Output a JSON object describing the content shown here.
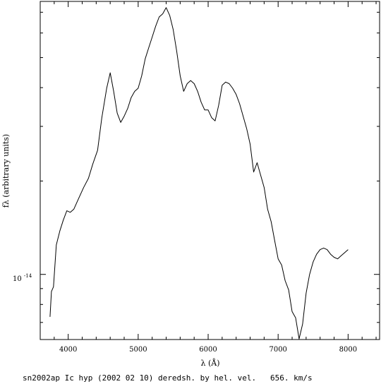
{
  "chart_data": {
    "type": "line",
    "title": "",
    "caption": "sn2002ap Ic hyp (2002 02 10) deredsh. by hel. vel.   656. km/s",
    "xlabel": "λ (Å)",
    "ylabel": "fλ (arbitrary units)",
    "y_scale": "log",
    "xlim": [
      3600,
      8450
    ],
    "ylim_log10": [
      -14.21,
      -13.12
    ],
    "x_ticks": [
      {
        "value": 4000,
        "label": "4000"
      },
      {
        "value": 5000,
        "label": "5000"
      },
      {
        "value": 6000,
        "label": "6000"
      },
      {
        "value": 7000,
        "label": "7000"
      },
      {
        "value": 8000,
        "label": "8000"
      }
    ],
    "y_tick_label": "10",
    "y_tick_exponent": "-14",
    "y_tick_value_log10": -14,
    "grid": false,
    "series": [
      {
        "color": "#000000",
        "log10_flux": [
          [
            3740,
            -14.137
          ],
          [
            3760,
            -14.055
          ],
          [
            3790,
            -14.04
          ],
          [
            3830,
            -13.905
          ],
          [
            3880,
            -13.86
          ],
          [
            3930,
            -13.825
          ],
          [
            3980,
            -13.795
          ],
          [
            4030,
            -13.8
          ],
          [
            4080,
            -13.79
          ],
          [
            4150,
            -13.755
          ],
          [
            4220,
            -13.72
          ],
          [
            4290,
            -13.69
          ],
          [
            4350,
            -13.645
          ],
          [
            4420,
            -13.6
          ],
          [
            4480,
            -13.495
          ],
          [
            4550,
            -13.4
          ],
          [
            4600,
            -13.35
          ],
          [
            4650,
            -13.41
          ],
          [
            4700,
            -13.48
          ],
          [
            4750,
            -13.51
          ],
          [
            4800,
            -13.49
          ],
          [
            4850,
            -13.465
          ],
          [
            4900,
            -13.43
          ],
          [
            4950,
            -13.41
          ],
          [
            5000,
            -13.4
          ],
          [
            5050,
            -13.36
          ],
          [
            5100,
            -13.305
          ],
          [
            5150,
            -13.27
          ],
          [
            5200,
            -13.235
          ],
          [
            5250,
            -13.2
          ],
          [
            5300,
            -13.17
          ],
          [
            5350,
            -13.16
          ],
          [
            5400,
            -13.14
          ],
          [
            5450,
            -13.165
          ],
          [
            5500,
            -13.21
          ],
          [
            5550,
            -13.28
          ],
          [
            5600,
            -13.36
          ],
          [
            5650,
            -13.41
          ],
          [
            5700,
            -13.385
          ],
          [
            5750,
            -13.375
          ],
          [
            5800,
            -13.385
          ],
          [
            5850,
            -13.41
          ],
          [
            5900,
            -13.445
          ],
          [
            5950,
            -13.47
          ],
          [
            6000,
            -13.47
          ],
          [
            6050,
            -13.495
          ],
          [
            6100,
            -13.505
          ],
          [
            6150,
            -13.455
          ],
          [
            6200,
            -13.39
          ],
          [
            6250,
            -13.38
          ],
          [
            6300,
            -13.385
          ],
          [
            6350,
            -13.4
          ],
          [
            6400,
            -13.42
          ],
          [
            6450,
            -13.45
          ],
          [
            6500,
            -13.49
          ],
          [
            6550,
            -13.53
          ],
          [
            6600,
            -13.58
          ],
          [
            6650,
            -13.67
          ],
          [
            6700,
            -13.64
          ],
          [
            6750,
            -13.68
          ],
          [
            6800,
            -13.72
          ],
          [
            6850,
            -13.79
          ],
          [
            6900,
            -13.83
          ],
          [
            6950,
            -13.89
          ],
          [
            7000,
            -13.95
          ],
          [
            7050,
            -13.97
          ],
          [
            7100,
            -14.02
          ],
          [
            7150,
            -14.05
          ],
          [
            7200,
            -14.12
          ],
          [
            7250,
            -14.14
          ],
          [
            7300,
            -14.208
          ],
          [
            7350,
            -14.16
          ],
          [
            7400,
            -14.06
          ],
          [
            7450,
            -14.0
          ],
          [
            7500,
            -13.96
          ],
          [
            7550,
            -13.935
          ],
          [
            7600,
            -13.92
          ],
          [
            7650,
            -13.915
          ],
          [
            7700,
            -13.92
          ],
          [
            7750,
            -13.935
          ],
          [
            7800,
            -13.945
          ],
          [
            7850,
            -13.95
          ],
          [
            7900,
            -13.94
          ],
          [
            7950,
            -13.93
          ],
          [
            8000,
            -13.92
          ]
        ]
      }
    ]
  }
}
